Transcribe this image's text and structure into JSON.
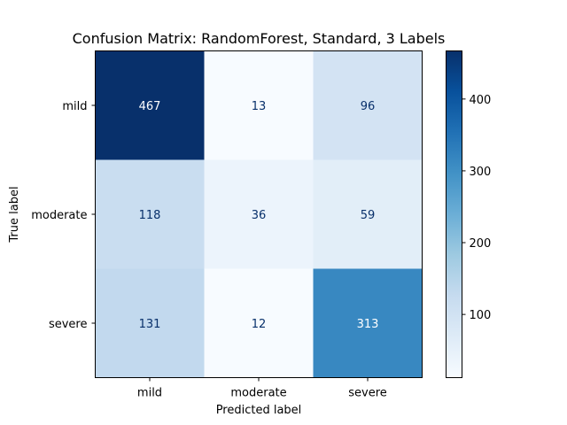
{
  "chart_data": {
    "type": "heatmap",
    "title": "Confusion Matrix: RandomForest, Standard, 3 Labels",
    "xlabel": "Predicted label",
    "ylabel": "True label",
    "row_labels": [
      "mild",
      "moderate",
      "severe"
    ],
    "col_labels": [
      "mild",
      "moderate",
      "severe"
    ],
    "values": [
      [
        467,
        13,
        96
      ],
      [
        118,
        36,
        59
      ],
      [
        131,
        12,
        313
      ]
    ],
    "colormap": "Blues",
    "color_range": [
      12,
      467
    ],
    "colorbar_ticks": [
      100,
      200,
      300,
      400
    ],
    "text_colors": {
      "dark_cell": "#ffffff",
      "light_cell": "#08306b"
    },
    "grid": false
  }
}
